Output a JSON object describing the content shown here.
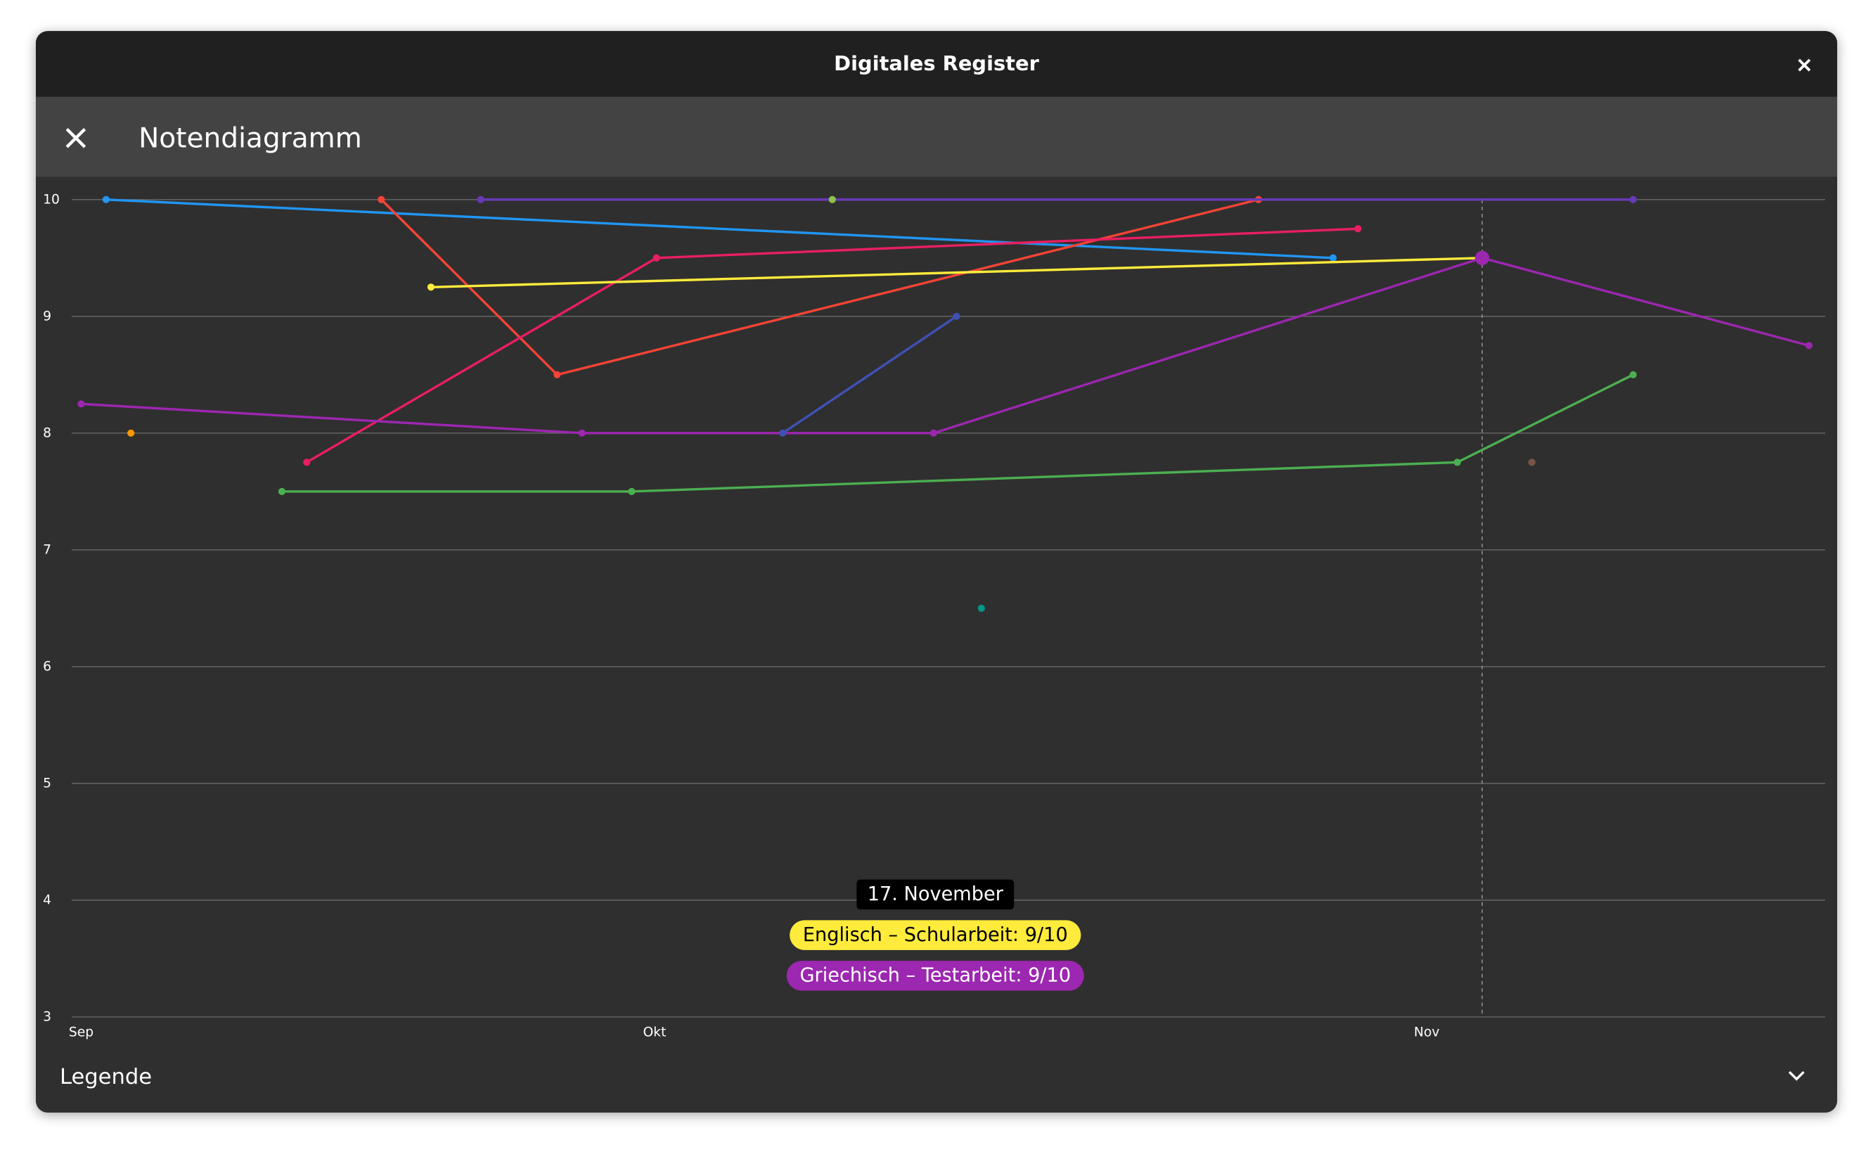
{
  "window": {
    "title": "Digitales Register"
  },
  "app_bar": {
    "title": "Notendiagramm"
  },
  "legend": {
    "label": "Legende"
  },
  "tooltip": {
    "date": "17. November",
    "entries": [
      "Englisch – Schularbeit: 9/10",
      "Griechisch – Testarbeit: 9/10"
    ]
  },
  "chart_data": {
    "type": "line",
    "xlim": [
      -0.5,
      91.25
    ],
    "xticks": [
      {
        "value": 0,
        "label": "Sep"
      },
      {
        "value": 30,
        "label": "Okt"
      },
      {
        "value": 70.4,
        "label": "Nov"
      }
    ],
    "ylim": [
      3,
      10
    ],
    "yticks": [
      3,
      4,
      5,
      6,
      7,
      8,
      9,
      10
    ],
    "grid": true,
    "crosshair": 73.3,
    "series": [
      {
        "color": "#2196f3",
        "x": [
          1.3,
          65.5
        ],
        "values": [
          10,
          9.5
        ]
      },
      {
        "color": "#f44336",
        "x": [
          15.7,
          24.9,
          61.6
        ],
        "values": [
          10,
          8.5,
          10
        ]
      },
      {
        "color": "#673ab7",
        "x": [
          20.9,
          81.2
        ],
        "values": [
          10,
          10
        ]
      },
      {
        "color": "#8bc34a",
        "x": [
          39.3
        ],
        "values": [
          10
        ]
      },
      {
        "color": "#e91e63",
        "x": [
          11.8,
          30.1,
          66.8
        ],
        "values": [
          7.75,
          9.5,
          9.75
        ]
      },
      {
        "color": "#ffeb3b",
        "x": [
          18.3,
          73.3
        ],
        "values": [
          9.25,
          9.5
        ]
      },
      {
        "color": "#9c27b0",
        "x": [
          0,
          26.2,
          44.6,
          73.3,
          90.4
        ],
        "values": [
          8.25,
          8,
          8,
          9.5,
          8.75
        ]
      },
      {
        "color": "#3f51b5",
        "x": [
          36.7,
          45.8
        ],
        "values": [
          8,
          9
        ]
      },
      {
        "color": "#ff9800",
        "x": [
          2.6
        ],
        "values": [
          8
        ]
      },
      {
        "color": "#4caf50",
        "x": [
          10.5,
          28.8,
          72,
          81.2
        ],
        "values": [
          7.5,
          7.5,
          7.75,
          8.5
        ]
      },
      {
        "color": "#795548",
        "x": [
          75.9
        ],
        "values": [
          7.75
        ]
      },
      {
        "color": "#009688",
        "x": [
          47.1
        ],
        "values": [
          6.5
        ]
      }
    ]
  }
}
